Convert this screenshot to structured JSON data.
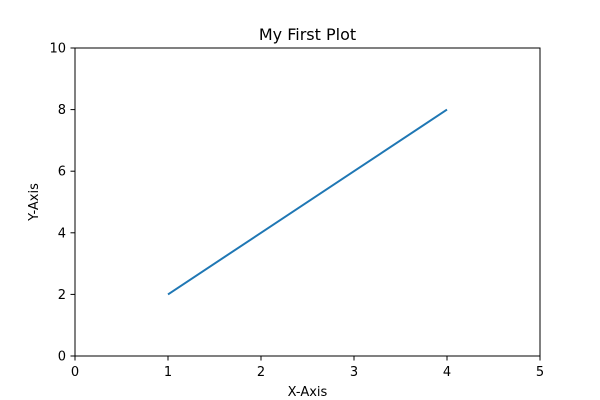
{
  "chart_data": {
    "type": "line",
    "title": "My First Plot",
    "xlabel": "X-Axis",
    "ylabel": "Y-Axis",
    "xlim": [
      0,
      5
    ],
    "ylim": [
      0,
      10
    ],
    "xticks": [
      0,
      1,
      2,
      3,
      4,
      5
    ],
    "yticks": [
      0,
      2,
      4,
      6,
      8,
      10
    ],
    "grid": false,
    "series": [
      {
        "x": [
          1,
          2,
          3,
          4
        ],
        "y": [
          2,
          4,
          6,
          8
        ],
        "color": "#1f77b4"
      }
    ]
  }
}
